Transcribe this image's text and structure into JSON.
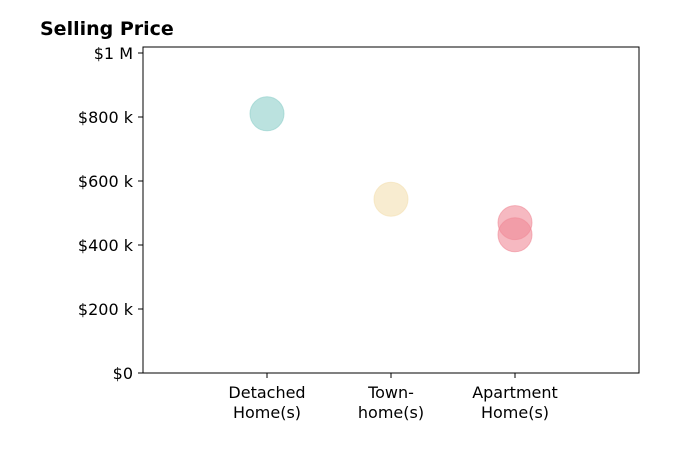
{
  "chart_data": {
    "type": "scatter",
    "title": "Selling Price",
    "xlabel": "",
    "ylabel": "",
    "categories": [
      [
        "Detached",
        "Home(s)"
      ],
      [
        "Town-",
        "home(s)"
      ],
      [
        "Apartment",
        "Home(s)"
      ]
    ],
    "ylim": [
      0,
      1000000
    ],
    "yticks": [
      {
        "value": 0,
        "label": "$0"
      },
      {
        "value": 200000,
        "label": "$200 k"
      },
      {
        "value": 400000,
        "label": "$400 k"
      },
      {
        "value": 600000,
        "label": "$600 k"
      },
      {
        "value": 800000,
        "label": "$800 k"
      },
      {
        "value": 1000000,
        "label": "$1 M"
      }
    ],
    "points": [
      {
        "category": 0,
        "value": 810000,
        "color": "#8ecfc9"
      },
      {
        "category": 1,
        "value": 543000,
        "color": "#f4dfb0"
      },
      {
        "category": 2,
        "value": 470000,
        "color": "#f08a97"
      },
      {
        "category": 2,
        "value": 432000,
        "color": "#f08a97"
      }
    ],
    "point_opacity": 0.6,
    "grid": false,
    "legend": "none"
  }
}
